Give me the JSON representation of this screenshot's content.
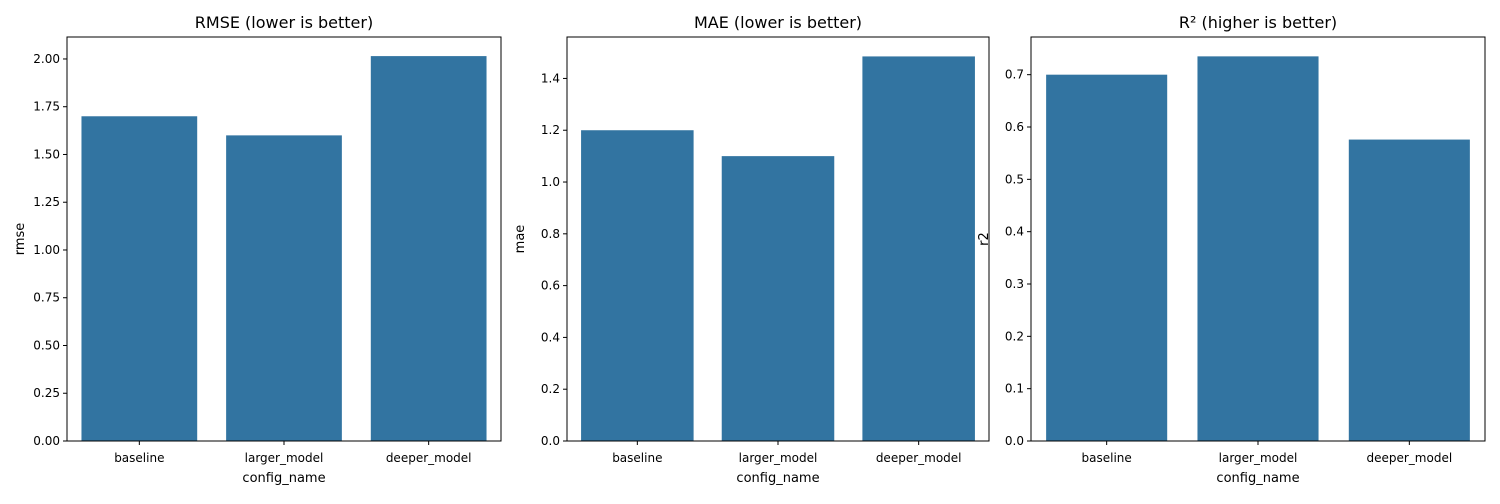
{
  "figure": {
    "colors": {
      "bar": "#3274a1",
      "axis": "#000000",
      "background": "#ffffff"
    }
  },
  "chart_data": [
    {
      "type": "bar",
      "title": "RMSE (lower is better)",
      "xlabel": "config_name",
      "ylabel": "rmse",
      "categories": [
        "baseline",
        "larger_model",
        "deeper_model"
      ],
      "values": [
        1.7,
        1.6,
        2.015
      ],
      "ylim": [
        0,
        2.115
      ],
      "yticks": [
        0.0,
        0.25,
        0.5,
        0.75,
        1.0,
        1.25,
        1.5,
        1.75,
        2.0
      ],
      "ytick_labels": [
        "0.00",
        "0.25",
        "0.50",
        "0.75",
        "1.00",
        "1.25",
        "1.50",
        "1.75",
        "2.00"
      ],
      "grid": false,
      "legend": "none"
    },
    {
      "type": "bar",
      "title": "MAE (lower is better)",
      "xlabel": "config_name",
      "ylabel": "mae",
      "categories": [
        "baseline",
        "larger_model",
        "deeper_model"
      ],
      "values": [
        1.2,
        1.1,
        1.485
      ],
      "ylim": [
        0,
        1.56
      ],
      "yticks": [
        0.0,
        0.2,
        0.4,
        0.6,
        0.8,
        1.0,
        1.2,
        1.4
      ],
      "ytick_labels": [
        "0.0",
        "0.2",
        "0.4",
        "0.6",
        "0.8",
        "1.0",
        "1.2",
        "1.4"
      ],
      "grid": false,
      "legend": "none"
    },
    {
      "type": "bar",
      "title": "R² (higher is better)",
      "xlabel": "config_name",
      "ylabel": "r2",
      "categories": [
        "baseline",
        "larger_model",
        "deeper_model"
      ],
      "values": [
        0.7,
        0.735,
        0.576
      ],
      "ylim": [
        0,
        0.772
      ],
      "yticks": [
        0.0,
        0.1,
        0.2,
        0.3,
        0.4,
        0.5,
        0.6,
        0.7
      ],
      "ytick_labels": [
        "0.0",
        "0.1",
        "0.2",
        "0.3",
        "0.4",
        "0.5",
        "0.6",
        "0.7"
      ],
      "grid": false,
      "legend": "none"
    }
  ]
}
